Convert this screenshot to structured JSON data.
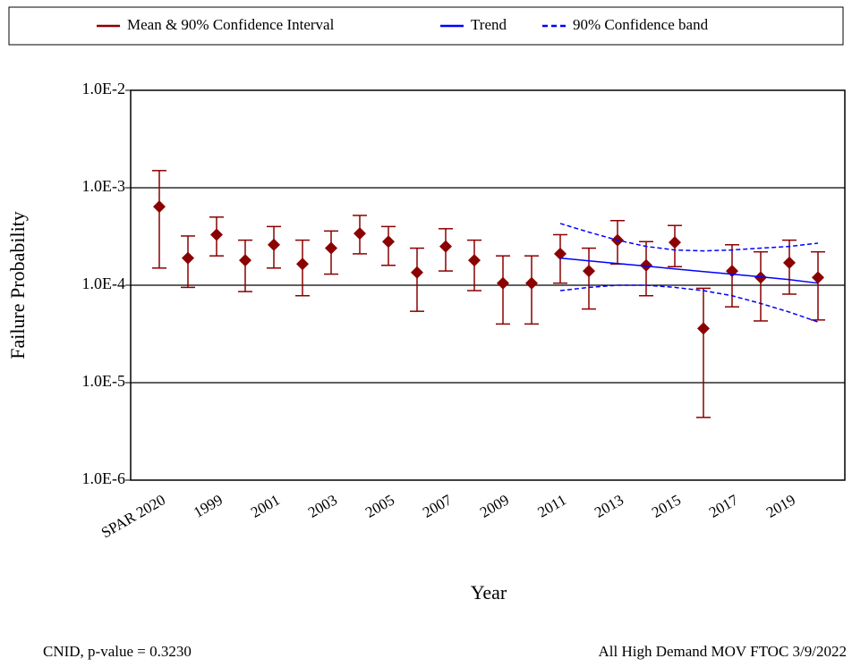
{
  "chart_data": {
    "type": "errorbar",
    "xlabel": "Year",
    "ylabel": "Failure Probability",
    "annotations": [
      "CNID, p-value = 0.3230",
      "All High Demand MOV FTOC 3/9/2022"
    ],
    "categories": [
      "SPAR 2020",
      null,
      "1999",
      null,
      "2001",
      null,
      "2003",
      null,
      "2005",
      null,
      "2007",
      null,
      "2009",
      null,
      "2011",
      null,
      "2013",
      null,
      "2015",
      null,
      "2017",
      null,
      "2019",
      null
    ],
    "log_y": true,
    "grid": true,
    "legend": "top",
    "ylim": [
      1e-06,
      0.01
    ],
    "yticks": [
      {
        "value": 0.01,
        "label": "1.0E-2"
      },
      {
        "value": 0.001,
        "label": "1.0E-3"
      },
      {
        "value": 0.0001,
        "label": "1.0E-4"
      },
      {
        "value": 1e-05,
        "label": "1.0E-5"
      },
      {
        "value": 1e-06,
        "label": "1.0E-6"
      }
    ],
    "series": [
      {
        "name": "Mean & 90% Confidence Interval",
        "color": "#8b0000",
        "values": [
          0.00064,
          0.00019,
          0.00033,
          0.00018,
          0.00026,
          0.000165,
          0.00024,
          0.00034,
          0.00028,
          0.000135,
          0.00025,
          0.00018,
          0.000105,
          0.000105,
          0.00021,
          0.00014,
          0.00029,
          0.00016,
          0.000275,
          3.6e-05,
          0.00014,
          0.00012,
          0.00017,
          0.00012
        ],
        "lower": [
          0.00015,
          9.5e-05,
          0.0002,
          8.6e-05,
          0.00015,
          7.8e-05,
          0.00013,
          0.00021,
          0.00016,
          5.4e-05,
          0.00014,
          8.8e-05,
          4e-05,
          4e-05,
          0.000105,
          5.7e-05,
          0.000165,
          7.8e-05,
          0.000155,
          4.4e-06,
          6e-05,
          4.3e-05,
          8.1e-05,
          4.4e-05
        ],
        "upper": [
          0.0015,
          0.00032,
          0.0005,
          0.00029,
          0.0004,
          0.00029,
          0.00036,
          0.00052,
          0.0004,
          0.00024,
          0.00038,
          0.00029,
          0.0002,
          0.0002,
          0.00033,
          0.00024,
          0.00046,
          0.00028,
          0.00041,
          9.3e-05,
          0.00026,
          0.00022,
          0.00029,
          0.00022
        ]
      },
      {
        "name": "Trend",
        "color": "#0000ff",
        "values": [
          null,
          null,
          null,
          null,
          null,
          null,
          null,
          null,
          null,
          null,
          null,
          null,
          null,
          null,
          0.00019,
          0.000178,
          0.000167,
          0.000157,
          0.000147,
          0.000138,
          0.00013,
          0.000122,
          0.000114,
          0.000105
        ]
      },
      {
        "name": "90% Confidence band",
        "color": "#0000ff",
        "dashed": true,
        "upper": [
          null,
          null,
          null,
          null,
          null,
          null,
          null,
          null,
          null,
          null,
          null,
          null,
          null,
          null,
          0.00043,
          0.00035,
          0.00029,
          0.00025,
          0.00023,
          0.000225,
          0.00023,
          0.00024,
          0.00025,
          0.00027
        ],
        "lower": [
          null,
          null,
          null,
          null,
          null,
          null,
          null,
          null,
          null,
          null,
          null,
          null,
          null,
          null,
          8.8e-05,
          9.5e-05,
          0.0001,
          0.0001,
          9.5e-05,
          8.8e-05,
          7.8e-05,
          6.5e-05,
          5.3e-05,
          4.2e-05
        ]
      }
    ]
  }
}
